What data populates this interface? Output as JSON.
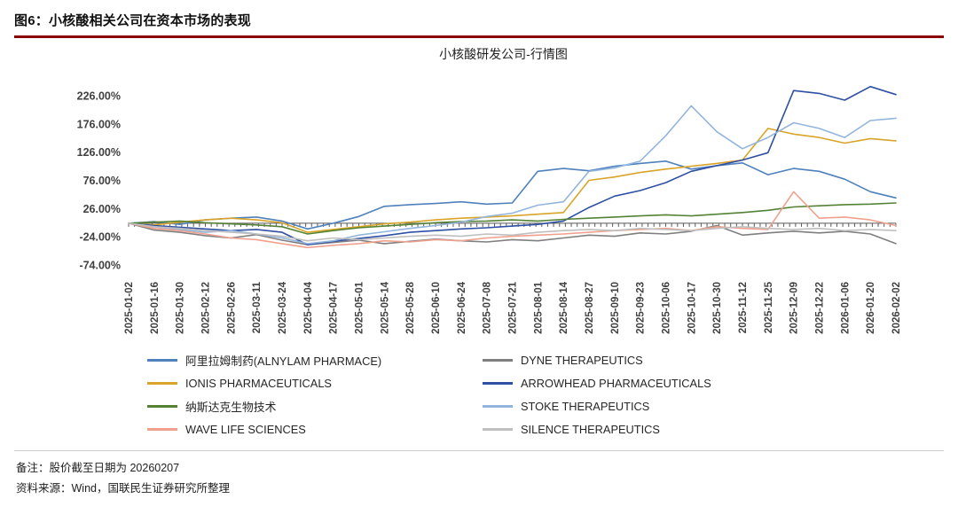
{
  "page": {
    "figure_label": "图6：小核酸相关公司在资本市场的表现",
    "accent_color": "#8B0000",
    "footer": {
      "note": "备注：股价截至日期为 20260207",
      "source": "资料来源：Wind，国联民生证券研究所整理"
    }
  },
  "chart_data": {
    "type": "line",
    "title": "小核酸研发公司-行情图",
    "xlabel": "",
    "ylabel": "",
    "grid": false,
    "legend_position": "bottom",
    "ylim": [
      -88,
      262
    ],
    "y_ticks": [
      {
        "value": 226,
        "label": "226.00%"
      },
      {
        "value": 176,
        "label": "176.00%"
      },
      {
        "value": 126,
        "label": "126.00%"
      },
      {
        "value": 76,
        "label": "76.00%"
      },
      {
        "value": 26,
        "label": "26.00%"
      },
      {
        "value": -24,
        "label": "-24.00%"
      },
      {
        "value": -74,
        "label": "-74.00%"
      }
    ],
    "categories": [
      "2025-01-02",
      "2025-01-16",
      "2025-01-30",
      "2025-02-12",
      "2025-02-26",
      "2025-03-11",
      "2025-03-24",
      "2025-04-04",
      "2025-04-17",
      "2025-05-01",
      "2025-05-14",
      "2025-05-28",
      "2025-06-10",
      "2025-06-24",
      "2025-07-08",
      "2025-07-21",
      "2025-08-01",
      "2025-08-14",
      "2025-08-27",
      "2025-09-10",
      "2025-09-23",
      "2025-10-06",
      "2025-10-17",
      "2025-10-30",
      "2025-11-12",
      "2025-11-25",
      "2025-12-09",
      "2025-12-22",
      "2026-01-06",
      "2026-01-20",
      "2026-02-02"
    ],
    "series": [
      {
        "name": "阿里拉姆制药(ALNYLAM PHARMACE)",
        "color": "#4F81BD",
        "values": [
          0,
          3,
          -2,
          6,
          9,
          11,
          4,
          -10,
          0,
          12,
          30,
          33,
          35,
          38,
          34,
          36,
          92,
          97,
          93,
          101,
          106,
          110,
          96,
          102,
          107,
          86,
          97,
          92,
          78,
          56,
          45
        ]
      },
      {
        "name": "DYNE THERAPEUTICS",
        "color": "#7F7F7F",
        "values": [
          0,
          -12,
          -16,
          -22,
          -26,
          -20,
          -30,
          -38,
          -34,
          -30,
          -36,
          -32,
          -28,
          -31,
          -33,
          -29,
          -31,
          -26,
          -21,
          -23,
          -17,
          -19,
          -14,
          -4,
          -21,
          -17,
          -14,
          -17,
          -14,
          -19,
          -36
        ]
      },
      {
        "name": "IONIS PHARMACEUTICALS",
        "color": "#D9A427",
        "values": [
          0,
          -3,
          2,
          6,
          9,
          6,
          1,
          -16,
          -11,
          -6,
          -1,
          2,
          6,
          9,
          11,
          13,
          16,
          19,
          76,
          82,
          90,
          96,
          101,
          106,
          112,
          168,
          158,
          152,
          142,
          150,
          146
        ]
      },
      {
        "name": "ARROWHEAD PHARMACEUTICALS",
        "color": "#2E4FA3",
        "values": [
          0,
          -4,
          -7,
          -10,
          -13,
          -11,
          -16,
          -38,
          -32,
          -27,
          -22,
          -16,
          -13,
          -10,
          -8,
          -5,
          -2,
          4,
          28,
          48,
          58,
          72,
          92,
          102,
          112,
          125,
          235,
          230,
          218,
          242,
          228
        ]
      },
      {
        "name": "纳斯达克生物技术",
        "color": "#548235",
        "values": [
          0,
          2,
          4,
          1,
          -1,
          -3,
          -6,
          -19,
          -13,
          -8,
          -5,
          -2,
          1,
          3,
          4,
          6,
          4,
          7,
          9,
          11,
          13,
          15,
          13,
          16,
          19,
          23,
          29,
          31,
          33,
          34,
          36
        ]
      },
      {
        "name": "STOKE THERAPEUTICS",
        "color": "#93B5DC",
        "values": [
          0,
          -6,
          -11,
          -16,
          -13,
          -19,
          -26,
          -36,
          -31,
          -21,
          -15,
          -9,
          -4,
          2,
          12,
          18,
          32,
          38,
          92,
          98,
          110,
          155,
          208,
          162,
          132,
          152,
          178,
          168,
          152,
          182,
          186
        ]
      },
      {
        "name": "WAVE LIFE SCIENCES",
        "color": "#EFA18E",
        "values": [
          0,
          -9,
          -13,
          -19,
          -26,
          -29,
          -36,
          -43,
          -39,
          -36,
          -31,
          -33,
          -29,
          -31,
          -26,
          -23,
          -21,
          -19,
          -16,
          -13,
          -11,
          -9,
          -13,
          -6,
          -9,
          -11,
          56,
          9,
          11,
          6,
          -4
        ]
      },
      {
        "name": "SILENCE THERAPEUTICS",
        "color": "#BFBFBF",
        "values": [
          0,
          -6,
          -9,
          -13,
          -16,
          -19,
          -23,
          -31,
          -26,
          -29,
          -26,
          -23,
          -21,
          -23,
          -19,
          -21,
          -16,
          -13,
          -11,
          -13,
          -9,
          -11,
          -13,
          -9,
          -6,
          -9,
          -11,
          -9,
          -13,
          -11,
          -13
        ]
      }
    ]
  }
}
